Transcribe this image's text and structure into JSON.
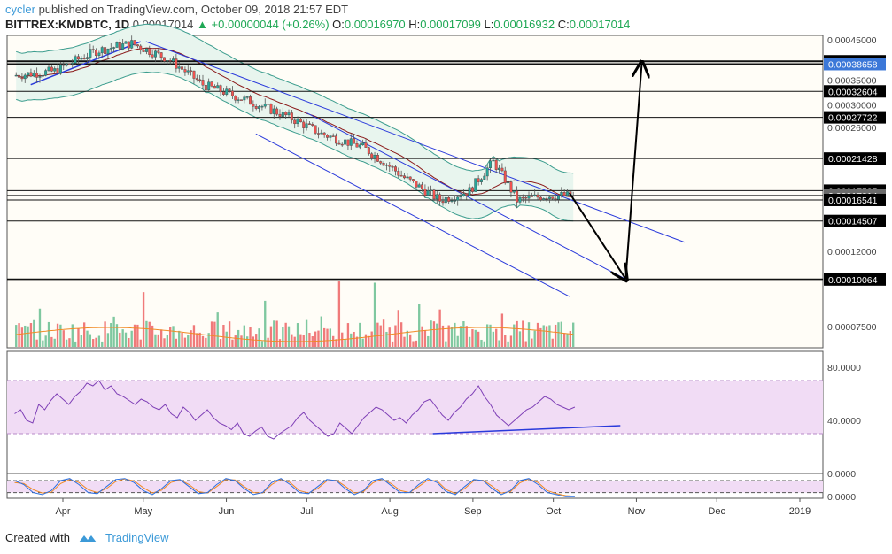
{
  "header": {
    "user": "cycler",
    "published": "published on TradingView.com, October 09, 2018 21:57 EDT",
    "symbol": "BITTREX:KMDBTC, 1D",
    "last": "0.00017014",
    "change": "+0.00000044 (+0.26%)",
    "o_label": "O:",
    "o": "0.00016970",
    "h_label": "H:",
    "h": "0.00017099",
    "l_label": "L:",
    "l": "0.00016932",
    "c_label": "C:",
    "c": "0.00017014"
  },
  "footer": {
    "created_with": "Created with",
    "brand": "TradingView"
  },
  "colors": {
    "up": "#26a69a",
    "down": "#ef5350",
    "bb_fill": "#e8f5ee",
    "bb_line": "#3c9d8e",
    "ma": "#8b1a1a",
    "channel": "#2a3adb",
    "rsi": "#7e3fb6",
    "rsi_band": "#f1dcf5",
    "stoch_k": "#2b6fe0",
    "stoch_d": "#f08a24",
    "vol_up": "#7fc8a0",
    "vol_down": "#f07a7a",
    "vol_ma": "#f08a24"
  },
  "chart_data": {
    "type": "candlestick",
    "price_scale": "log",
    "y_ticks": [
      "0.00045000",
      "0.00035000",
      "0.00030000",
      "0.00026000",
      "0.00012000",
      "0.00007500"
    ],
    "price_ticks": [
      0.00045,
      0.00035,
      0.0003,
      0.00026,
      0.00012,
      7.5e-05
    ],
    "x_labels": [
      "Apr",
      "May",
      "Jun",
      "Jul",
      "Aug",
      "Sep",
      "Oct",
      "Nov",
      "Dec",
      "2019"
    ],
    "x_dates": [
      "2018-04-01",
      "2018-05-01",
      "2018-06-01",
      "2018-07-01",
      "2018-08-01",
      "2018-09-01",
      "2018-10-01",
      "2018-11-01",
      "2018-12-01",
      "2019-01-01"
    ],
    "price_start": "2018-03-14",
    "price_end": "2018-10-09",
    "levels": [
      {
        "value": 0.00039357,
        "label": "0.00039357",
        "bold": true
      },
      {
        "value": 0.00038658,
        "label": "0.00038658",
        "bold": true,
        "highlight": "#3c78d8"
      },
      {
        "value": 0.00032604,
        "label": "0.00032604"
      },
      {
        "value": 0.00027722,
        "label": "0.00027722"
      },
      {
        "value": 0.00021428,
        "label": "0.00021428"
      },
      {
        "value": 0.00017535,
        "label": "0.00017535"
      },
      {
        "value": 0.00017014,
        "label": "0.00017014",
        "highlight": "#6b6b6b"
      },
      {
        "value": 0.00016541,
        "label": "0.00016541"
      },
      {
        "value": 0.00014507,
        "label": "0.00014507"
      },
      {
        "value": 0.00010097,
        "label": "0.00010097",
        "highlight": "#3c78d8"
      },
      {
        "value": 0.00010064,
        "label": "0.00010064"
      }
    ],
    "channel_lines": [
      {
        "from": [
          "2018-05-02",
          0.000445
        ],
        "to": [
          "2018-11-19",
          0.000127
        ]
      },
      {
        "from": [
          "2018-07-01",
          0.000285
        ],
        "to": [
          "2018-10-29",
          0.0001
        ]
      },
      {
        "from": [
          "2018-06-12",
          0.00025
        ],
        "to": [
          "2018-10-07",
          9.05e-05
        ]
      }
    ],
    "trendline": {
      "from": [
        "2018-03-20",
        0.00034
      ],
      "to": [
        "2018-04-30",
        0.000445
      ]
    },
    "arrows": [
      {
        "from": [
          "2018-10-07",
          0.000173
        ],
        "to": [
          "2018-10-28",
          0.000101
        ]
      },
      {
        "from": [
          "2018-10-28",
          0.000101
        ],
        "to": [
          "2018-11-03",
          0.000388
        ]
      }
    ],
    "rsi": {
      "ticks": [
        "80.0000",
        "40.0000",
        "0.0000"
      ],
      "tick_values": [
        80,
        40,
        0
      ],
      "band": [
        70,
        30
      ],
      "range": [
        0,
        92
      ],
      "trendline": {
        "from": [
          "2018-08-17",
          30
        ],
        "to": [
          "2018-10-26",
          36
        ]
      },
      "values": [
        45,
        48,
        40,
        38,
        52,
        48,
        55,
        60,
        56,
        52,
        58,
        62,
        68,
        66,
        70,
        63,
        66,
        60,
        58,
        55,
        52,
        56,
        54,
        50,
        48,
        52,
        45,
        42,
        50,
        46,
        40,
        44,
        48,
        42,
        38,
        36,
        33,
        38,
        30,
        28,
        32,
        35,
        28,
        26,
        30,
        33,
        36,
        42,
        46,
        40,
        36,
        32,
        28,
        30,
        38,
        34,
        30,
        36,
        42,
        46,
        50,
        48,
        44,
        40,
        42,
        38,
        44,
        48,
        54,
        56,
        50,
        44,
        40,
        46,
        50,
        56,
        60,
        66,
        58,
        52,
        44,
        40,
        36,
        40,
        44,
        48,
        50,
        54,
        58,
        56,
        52,
        50,
        48,
        50
      ]
    },
    "stoch": {
      "ticks": [
        "0.0000"
      ],
      "band": [
        80,
        20
      ],
      "range": [
        -8,
        115
      ],
      "k": [
        80,
        60,
        20,
        10,
        30,
        80,
        90,
        60,
        20,
        15,
        50,
        85,
        90,
        70,
        30,
        10,
        40,
        80,
        85,
        50,
        15,
        20,
        60,
        90,
        80,
        40,
        10,
        20,
        70,
        90,
        60,
        20,
        15,
        50,
        85,
        80,
        40,
        10,
        30,
        80,
        90,
        55,
        20,
        20,
        60,
        90,
        70,
        25,
        10,
        50,
        85,
        80,
        40,
        10,
        30,
        80,
        90,
        60,
        20,
        10,
        0,
        0
      ],
      "d": [
        70,
        65,
        35,
        18,
        22,
        65,
        85,
        70,
        35,
        20,
        40,
        75,
        88,
        78,
        45,
        18,
        32,
        70,
        83,
        60,
        25,
        18,
        50,
        85,
        83,
        50,
        20,
        18,
        60,
        87,
        70,
        30,
        18,
        40,
        78,
        82,
        52,
        18,
        25,
        68,
        88,
        65,
        30,
        20,
        50,
        82,
        78,
        35,
        15,
        40,
        78,
        82,
        52,
        18,
        25,
        68,
        88,
        70,
        30,
        15,
        5,
        2
      ]
    }
  }
}
